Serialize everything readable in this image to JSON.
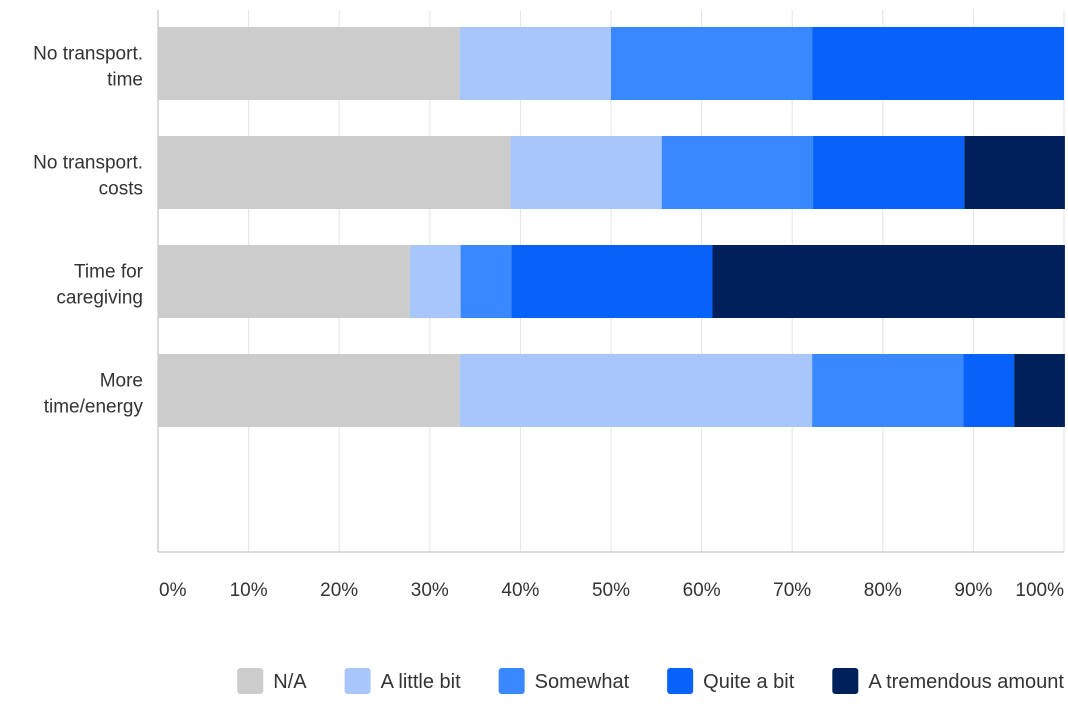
{
  "chart_data": {
    "type": "bar",
    "orientation": "horizontal",
    "stacked": true,
    "categories": [
      [
        "No transport.",
        "time"
      ],
      [
        "No transport.",
        "costs"
      ],
      [
        "Time for",
        "caregiving"
      ],
      [
        "More",
        "time/energy"
      ]
    ],
    "series": [
      {
        "name": "N/A",
        "color": "#cccccc",
        "values": [
          33.3,
          38.9,
          27.8,
          33.3
        ]
      },
      {
        "name": "A little bit",
        "color": "#a8c6fa",
        "values": [
          16.7,
          16.7,
          5.6,
          38.9
        ]
      },
      {
        "name": "Somewhat",
        "color": "#3a88fe",
        "values": [
          22.2,
          16.7,
          5.6,
          16.7
        ]
      },
      {
        "name": "Quite a bit",
        "color": "#0762fa",
        "values": [
          27.8,
          16.7,
          22.2,
          5.6
        ]
      },
      {
        "name": "A tremendous amount",
        "color": "#00205b",
        "values": [
          0,
          11.1,
          38.9,
          5.6
        ]
      }
    ],
    "xticks": [
      "0%",
      "10%",
      "20%",
      "30%",
      "40%",
      "50%",
      "60%",
      "70%",
      "80%",
      "90%",
      "100%"
    ],
    "xlim": [
      0,
      100
    ],
    "grid": true,
    "legend_position": "bottom"
  }
}
